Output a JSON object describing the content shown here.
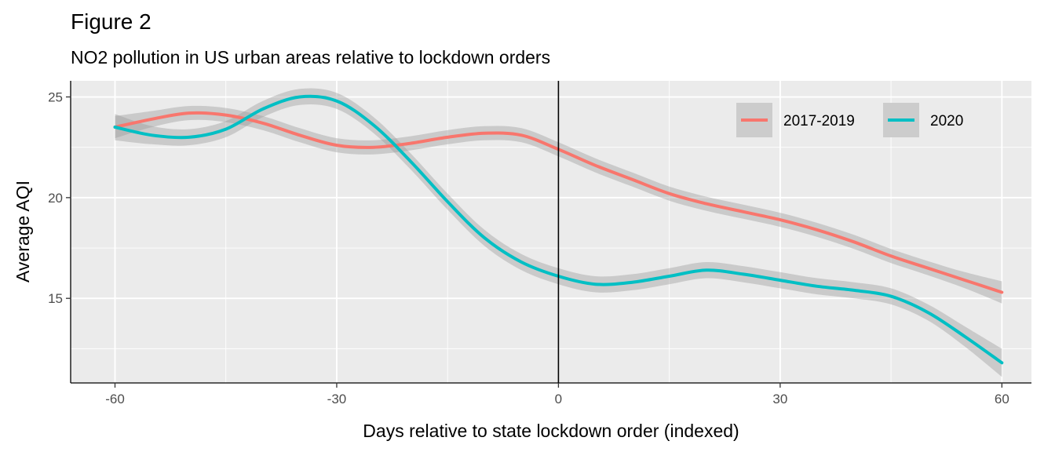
{
  "title": "Figure 2",
  "subtitle": "NO2 pollution in US urban areas relative to lockdown orders",
  "chart_data": {
    "type": "line",
    "title": "Figure 2",
    "subtitle": "NO2 pollution in US urban areas relative to lockdown orders",
    "xlabel": "Days relative to state lockdown order (indexed)",
    "ylabel": "Average AQI",
    "xlim": [
      -66,
      64
    ],
    "ylim": [
      10.8,
      25.8
    ],
    "x_ticks": [
      -60,
      -30,
      0,
      30,
      60
    ],
    "y_ticks": [
      15,
      20,
      25
    ],
    "grid": true,
    "reference_line_x": 0,
    "legend_position": "top-right",
    "series": [
      {
        "name": "2017-2019",
        "color": "#F8766D",
        "x": [
          -60,
          -55,
          -50,
          -45,
          -40,
          -35,
          -30,
          -25,
          -20,
          -15,
          -10,
          -5,
          0,
          5,
          10,
          15,
          20,
          25,
          30,
          35,
          40,
          45,
          50,
          55,
          60
        ],
        "y": [
          23.5,
          23.9,
          24.2,
          24.1,
          23.7,
          23.1,
          22.6,
          22.5,
          22.7,
          23.0,
          23.2,
          23.1,
          22.4,
          21.6,
          20.9,
          20.2,
          19.7,
          19.3,
          18.9,
          18.4,
          17.8,
          17.1,
          16.5,
          15.9,
          15.3
        ],
        "band": [
          0.55,
          0.4,
          0.35,
          0.35,
          0.35,
          0.35,
          0.35,
          0.35,
          0.35,
          0.35,
          0.35,
          0.35,
          0.35,
          0.35,
          0.35,
          0.35,
          0.35,
          0.35,
          0.35,
          0.35,
          0.35,
          0.35,
          0.35,
          0.4,
          0.55
        ]
      },
      {
        "name": "2020",
        "color": "#00BFC4",
        "x": [
          -60,
          -55,
          -50,
          -45,
          -40,
          -35,
          -30,
          -25,
          -20,
          -15,
          -10,
          -5,
          0,
          5,
          10,
          15,
          20,
          25,
          30,
          35,
          40,
          45,
          50,
          55,
          60
        ],
        "y": [
          23.5,
          23.1,
          23.0,
          23.4,
          24.4,
          25.0,
          24.8,
          23.6,
          21.8,
          19.8,
          18.0,
          16.8,
          16.1,
          15.7,
          15.8,
          16.1,
          16.4,
          16.2,
          15.9,
          15.6,
          15.4,
          15.1,
          14.3,
          13.1,
          11.8
        ],
        "band": [
          0.65,
          0.45,
          0.4,
          0.4,
          0.4,
          0.4,
          0.4,
          0.4,
          0.4,
          0.4,
          0.4,
          0.4,
          0.4,
          0.4,
          0.4,
          0.4,
          0.4,
          0.4,
          0.4,
          0.4,
          0.4,
          0.4,
          0.4,
          0.5,
          0.7
        ]
      }
    ]
  }
}
